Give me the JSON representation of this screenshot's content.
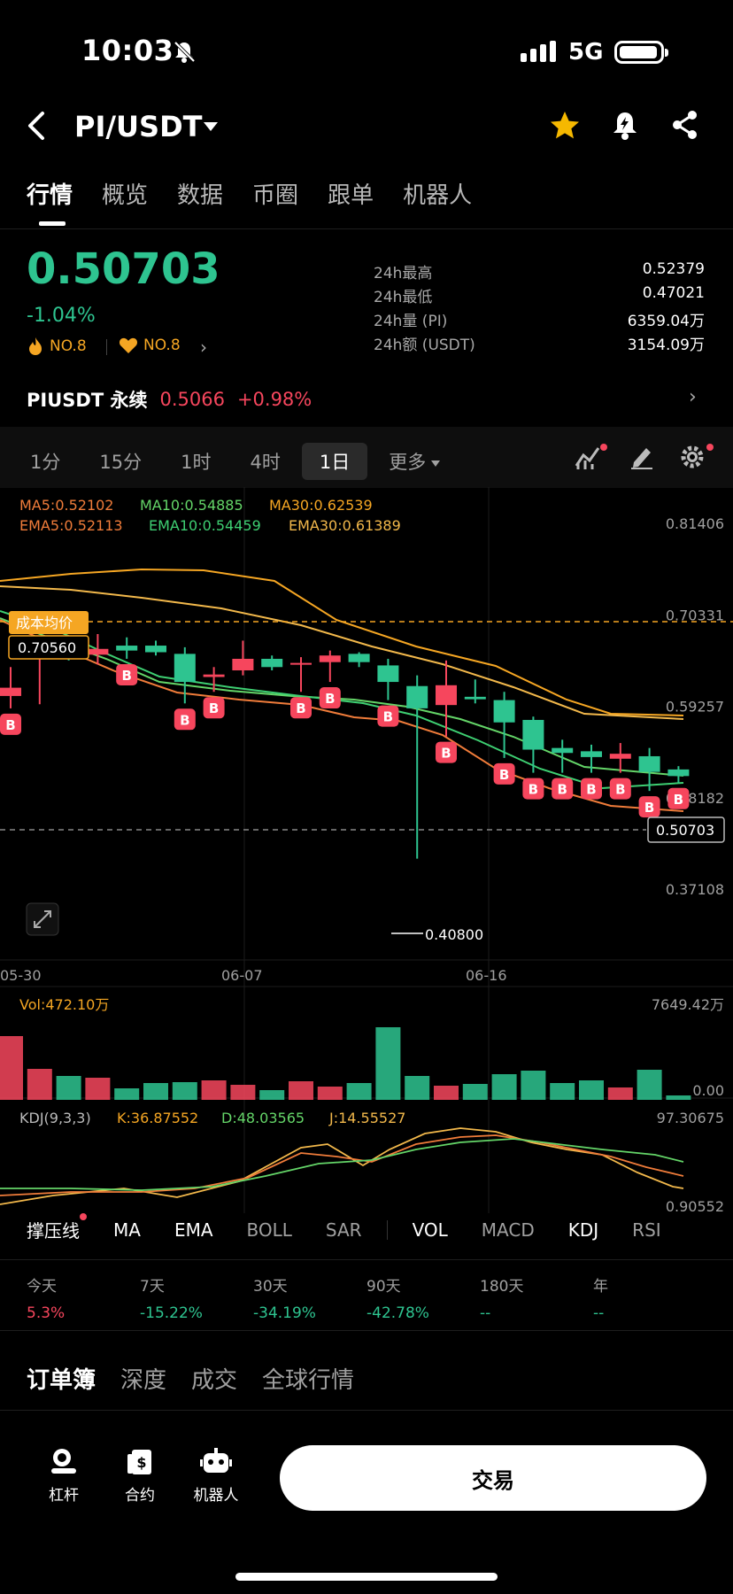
{
  "status": {
    "time": "10:03",
    "network": "5G"
  },
  "header": {
    "pair": "PI/USDT"
  },
  "tabs": [
    "行情",
    "概览",
    "数据",
    "币圈",
    "跟单",
    "机器人"
  ],
  "ticker": {
    "price": "0.50703",
    "change": "-1.04%",
    "rank_hot": "NO.8",
    "rank_fav": "NO.8",
    "stats": [
      {
        "label": "24h最高",
        "value": "0.52379"
      },
      {
        "label": "24h最低",
        "value": "0.47021"
      },
      {
        "label": "24h量 (PI)",
        "value": "6359.04万"
      },
      {
        "label": "24h额 (USDT)",
        "value": "3154.09万"
      }
    ]
  },
  "perp": {
    "name": "PIUSDT 永续",
    "price": "0.5066",
    "change": "+0.98%"
  },
  "intervals": [
    "1分",
    "15分",
    "1时",
    "4时",
    "1日",
    "更多"
  ],
  "chart_data": {
    "type": "candlestick",
    "ma": {
      "ma5": "MA5:0.52102",
      "ma10": "MA10:0.54885",
      "ma30": "MA30:0.62539"
    },
    "ema": {
      "ema5": "EMA5:0.52113",
      "ema10": "EMA10:0.54459",
      "ema30": "EMA30:0.61389"
    },
    "price_axis": [
      "0.81406",
      "0.70331",
      "0.59257",
      "0.48182",
      "0.37108"
    ],
    "ylim": [
      0.37108,
      0.81406
    ],
    "cost_label": "成本均价",
    "cost_price": "0.70560",
    "current_price": "0.50703",
    "low_label": "0.40800",
    "date_labels": [
      "05-30",
      "06-07",
      "06-16"
    ],
    "buy_marker": "B",
    "candles": [
      {
        "o": 0.605,
        "h": 0.64,
        "l": 0.59,
        "c": 0.615,
        "b": true
      },
      {
        "o": 0.67,
        "h": 0.672,
        "l": 0.595,
        "c": 0.67,
        "b": false
      },
      {
        "o": 0.668,
        "h": 0.672,
        "l": 0.648,
        "c": 0.662,
        "b": false
      },
      {
        "o": 0.655,
        "h": 0.68,
        "l": 0.643,
        "c": 0.662,
        "b": false
      },
      {
        "o": 0.666,
        "h": 0.676,
        "l": 0.65,
        "c": 0.66,
        "b": true
      },
      {
        "o": 0.666,
        "h": 0.672,
        "l": 0.654,
        "c": 0.658,
        "b": false
      },
      {
        "o": 0.656,
        "h": 0.664,
        "l": 0.596,
        "c": 0.622,
        "b": true
      },
      {
        "o": 0.628,
        "h": 0.64,
        "l": 0.61,
        "c": 0.631,
        "b": true
      },
      {
        "o": 0.636,
        "h": 0.672,
        "l": 0.63,
        "c": 0.65,
        "b": false
      },
      {
        "o": 0.65,
        "h": 0.654,
        "l": 0.636,
        "c": 0.64,
        "b": false
      },
      {
        "o": 0.643,
        "h": 0.652,
        "l": 0.61,
        "c": 0.645,
        "b": true
      },
      {
        "o": 0.646,
        "h": 0.66,
        "l": 0.622,
        "c": 0.654,
        "b": true
      },
      {
        "o": 0.656,
        "h": 0.658,
        "l": 0.64,
        "c": 0.646,
        "b": false
      },
      {
        "o": 0.642,
        "h": 0.65,
        "l": 0.6,
        "c": 0.622,
        "b": true
      },
      {
        "o": 0.617,
        "h": 0.63,
        "l": 0.408,
        "c": 0.59,
        "b": false
      },
      {
        "o": 0.594,
        "h": 0.648,
        "l": 0.556,
        "c": 0.618,
        "b": true
      },
      {
        "o": 0.604,
        "h": 0.625,
        "l": 0.596,
        "c": 0.601,
        "b": false
      },
      {
        "o": 0.6,
        "h": 0.61,
        "l": 0.53,
        "c": 0.573,
        "b": true
      },
      {
        "o": 0.576,
        "h": 0.58,
        "l": 0.512,
        "c": 0.54,
        "b": true
      },
      {
        "o": 0.542,
        "h": 0.552,
        "l": 0.512,
        "c": 0.536,
        "b": true
      },
      {
        "o": 0.538,
        "h": 0.546,
        "l": 0.512,
        "c": 0.531,
        "b": true
      },
      {
        "o": 0.529,
        "h": 0.548,
        "l": 0.512,
        "c": 0.535,
        "b": true
      },
      {
        "o": 0.532,
        "h": 0.542,
        "l": 0.49,
        "c": 0.513,
        "b": true
      },
      {
        "o": 0.516,
        "h": 0.52,
        "l": 0.5,
        "c": 0.508,
        "b": true
      }
    ],
    "volume": {
      "label": "Vol:472.10万",
      "axis_max": "7649.42万",
      "axis_min": "0.00",
      "bars": [
        0.72,
        0.35,
        0.27,
        0.25,
        0.13,
        0.19,
        0.2,
        0.22,
        0.17,
        0.11,
        0.21,
        0.15,
        0.19,
        0.82,
        0.27,
        0.16,
        0.18,
        0.29,
        0.33,
        0.19,
        0.22,
        0.14,
        0.34,
        0.05
      ]
    },
    "kdj": {
      "label": "KDJ(9,3,3)",
      "k": "K:36.87552",
      "d": "D:48.03565",
      "j": "J:14.55527",
      "axis_max": "97.30675",
      "axis_min": "0.90552"
    }
  },
  "indicators": [
    "撑压线",
    "MA",
    "EMA",
    "BOLL",
    "SAR",
    "VOL",
    "MACD",
    "KDJ",
    "RSI"
  ],
  "performance": [
    {
      "label": "今天",
      "value": "5.3%"
    },
    {
      "label": "7天",
      "value": "-15.22%"
    },
    {
      "label": "30天",
      "value": "-34.19%"
    },
    {
      "label": "90天",
      "value": "-42.78%"
    },
    {
      "label": "180天",
      "value": "--"
    },
    {
      "label": "年",
      "value": "--"
    }
  ],
  "book_tabs": [
    "订单簿",
    "深度",
    "成交",
    "全球行情"
  ],
  "bottom": {
    "leverage": "杠杆",
    "contract": "合约",
    "robot": "机器人",
    "trade": "交易"
  },
  "colors": {
    "up": "#f6465d",
    "down": "#2ec490",
    "accent": "#f5a623"
  }
}
